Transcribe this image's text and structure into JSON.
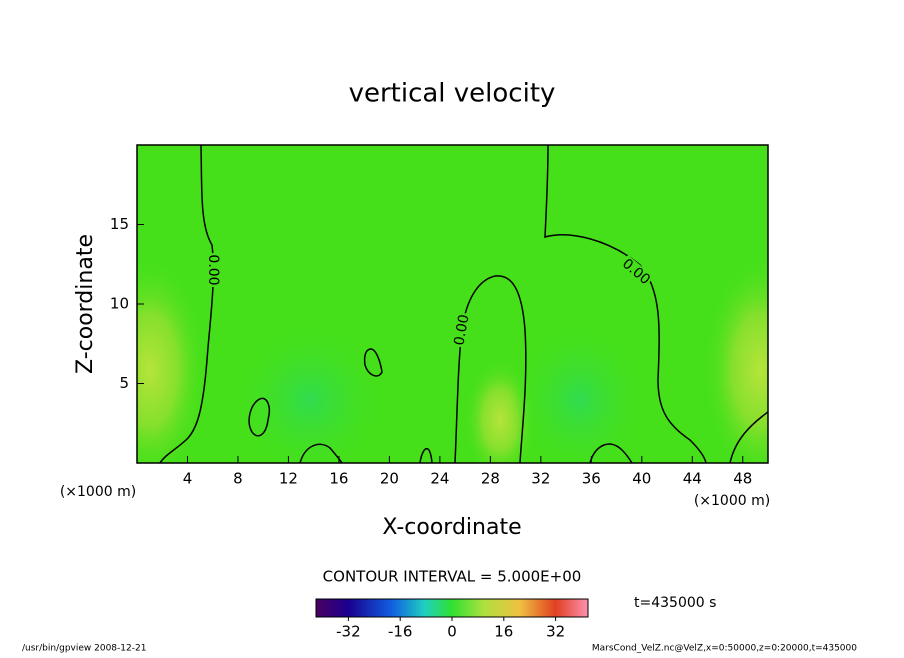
{
  "chart_data": {
    "type": "contour",
    "title": "vertical velocity",
    "xlabel": "X-coordinate",
    "ylabel": "Z-coordinate",
    "x_unit": "(×1000 m)",
    "xlim": [
      0,
      50
    ],
    "xticks": [
      4,
      8,
      12,
      16,
      20,
      24,
      28,
      32,
      36,
      40,
      44,
      48
    ],
    "ylim": [
      0,
      20
    ],
    "yticks": [
      5,
      10,
      15
    ],
    "contour_levels": [
      0
    ],
    "contour_labels": [
      "0.00",
      "0.00",
      "0.00"
    ],
    "contour_interval_label": "CONTOUR INTERVAL = 5.000E+00",
    "time_label": "t=435000 s",
    "colorbar": {
      "lim": [
        -42,
        42
      ],
      "ticks": [
        -32,
        -16,
        0,
        16,
        32
      ]
    },
    "footer_left": "/usr/bin/gpview  2008-12-21",
    "footer_right": "MarsCond_VelZ.nc@VelZ,x=0:50000,z=0:20000,t=435000"
  }
}
